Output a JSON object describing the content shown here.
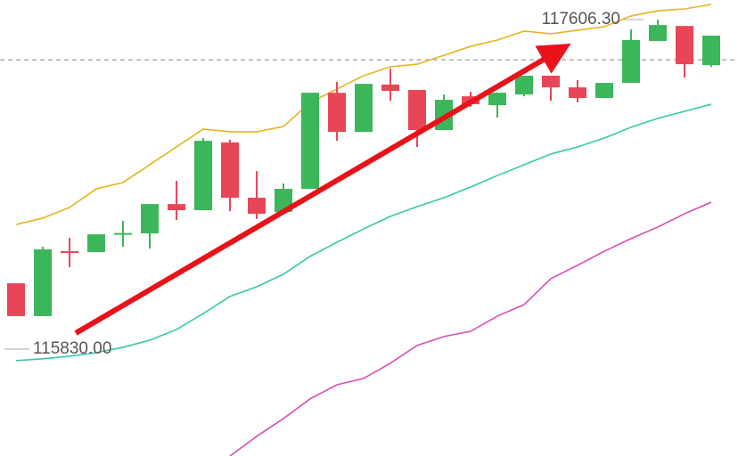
{
  "chart_data": {
    "type": "candlestick",
    "ylim": [
      115254,
      117712
    ],
    "up_color": "#3cb65a",
    "down_color": "#e84657",
    "candles": [
      {
        "open": 116185,
        "high": 116185,
        "low": 116008,
        "close": 116008
      },
      {
        "open": 116008,
        "high": 116382,
        "low": 116008,
        "close": 116368
      },
      {
        "open": 116358,
        "high": 116430,
        "low": 116272,
        "close": 116348
      },
      {
        "open": 116353,
        "high": 116449,
        "low": 116353,
        "close": 116449
      },
      {
        "open": 116450,
        "high": 116521,
        "low": 116382,
        "close": 116456
      },
      {
        "open": 116454,
        "high": 116612,
        "low": 116372,
        "close": 116612
      },
      {
        "open": 116612,
        "high": 116737,
        "low": 116526,
        "close": 116579
      },
      {
        "open": 116579,
        "high": 116968,
        "low": 116579,
        "close": 116953
      },
      {
        "open": 116944,
        "high": 116958,
        "low": 116574,
        "close": 116646
      },
      {
        "open": 116646,
        "high": 116790,
        "low": 116531,
        "close": 116560
      },
      {
        "open": 116569,
        "high": 116723,
        "low": 116560,
        "close": 116694
      },
      {
        "open": 116694,
        "high": 117212,
        "low": 116694,
        "close": 117212
      },
      {
        "open": 117212,
        "high": 117270,
        "low": 116953,
        "close": 117001
      },
      {
        "open": 117001,
        "high": 117260,
        "low": 117001,
        "close": 117260
      },
      {
        "open": 117256,
        "high": 117342,
        "low": 117169,
        "close": 117222
      },
      {
        "open": 117227,
        "high": 117227,
        "low": 116920,
        "close": 117011
      },
      {
        "open": 117011,
        "high": 117203,
        "low": 117011,
        "close": 117174
      },
      {
        "open": 117193,
        "high": 117217,
        "low": 117136,
        "close": 117150
      },
      {
        "open": 117145,
        "high": 117212,
        "low": 117078,
        "close": 117212
      },
      {
        "open": 117203,
        "high": 117304,
        "low": 117193,
        "close": 117304
      },
      {
        "open": 117304,
        "high": 117304,
        "low": 117169,
        "close": 117241
      },
      {
        "open": 117241,
        "high": 117280,
        "low": 117160,
        "close": 117184
      },
      {
        "open": 117184,
        "high": 117265,
        "low": 117184,
        "close": 117265
      },
      {
        "open": 117265,
        "high": 117553,
        "low": 117265,
        "close": 117496
      },
      {
        "open": 117491,
        "high": 117606,
        "low": 117491,
        "close": 117577
      },
      {
        "open": 117572,
        "high": 117572,
        "low": 117294,
        "close": 117366
      },
      {
        "open": 117361,
        "high": 117520,
        "low": 117352,
        "close": 117520
      }
    ],
    "lines": [
      {
        "color": "#e6b422",
        "values": [
          116502,
          116536,
          116594,
          116694,
          116728,
          116824,
          116920,
          117016,
          117002,
          117002,
          117030,
          117160,
          117232,
          117304,
          117352,
          117366,
          117414,
          117462,
          117496,
          117544,
          117530,
          117549,
          117568,
          117626,
          117654,
          117664,
          117688
        ]
      },
      {
        "color": "#35c9a8",
        "values": [
          115768,
          115778,
          115792,
          115811,
          115840,
          115878,
          115936,
          116022,
          116114,
          116166,
          116234,
          116330,
          116406,
          116478,
          116546,
          116598,
          116646,
          116704,
          116766,
          116824,
          116882,
          116920,
          116968,
          117026,
          117074,
          117112,
          117150
        ]
      },
      {
        "color": "#d64fb4",
        "values": [
          null,
          null,
          null,
          null,
          null,
          null,
          null,
          null,
          115254,
          115360,
          115456,
          115562,
          115638,
          115672,
          115754,
          115850,
          115898,
          115926,
          116008,
          116070,
          116210,
          116282,
          116358,
          116426,
          116488,
          116560,
          116622
        ]
      }
    ],
    "last_price_line": 117390,
    "annotations": [
      {
        "text": "117606.30",
        "value": 117606.3,
        "side": "right"
      },
      {
        "text": "115830.00",
        "value": 115830,
        "side": "left"
      }
    ]
  }
}
